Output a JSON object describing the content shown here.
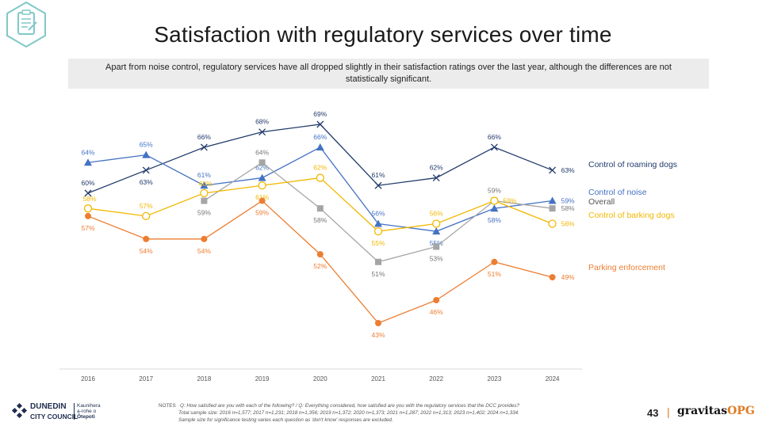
{
  "title": "Satisfaction with regulatory services over time",
  "subtitle": "Apart from noise control, regulatory services have all dropped slightly in their satisfaction ratings over the last year, although the differences are not statistically significant.",
  "chart_data": {
    "type": "line",
    "categories": [
      "2016",
      "2017",
      "2018",
      "2019",
      "2020",
      "2021",
      "2022",
      "2023",
      "2024"
    ],
    "ylim": [
      40,
      70
    ],
    "grid": false,
    "legend": "right, labels at line ends",
    "series": [
      {
        "name": "Control of roaming dogs",
        "color": "#223b6b",
        "marker": "x",
        "values": [
          60,
          63,
          66,
          68,
          69,
          61,
          62,
          66,
          63
        ],
        "labels": [
          "60%",
          "63%",
          "66%",
          "68%",
          "69%",
          "61%",
          "62%",
          "66%",
          "63%"
        ],
        "label_pos": [
          "above",
          "below",
          "above",
          "above",
          "above",
          "above",
          "above",
          "above",
          "right"
        ]
      },
      {
        "name": "Control of noise",
        "color": "#4472c4",
        "marker": "triangle",
        "values": [
          64,
          65,
          61,
          62,
          66,
          56,
          55,
          58,
          59
        ],
        "labels": [
          "64%",
          "65%",
          "61%",
          "62%",
          "66%",
          "56%",
          "55%",
          "58%",
          "59%"
        ],
        "label_pos": [
          "above",
          "above",
          "above",
          "above",
          "above",
          "above",
          "below",
          "below",
          "right"
        ]
      },
      {
        "name": "Overall",
        "color": "#a5a5a5",
        "marker": "square",
        "values": [
          null,
          null,
          59,
          64,
          58,
          51,
          53,
          59,
          58
        ],
        "labels": [
          "",
          "",
          "59%",
          "64%",
          "58%",
          "51%",
          "53%",
          "59%",
          "58%"
        ],
        "label_pos": [
          "",
          "",
          "below",
          "above",
          "below",
          "below",
          "below",
          "above",
          "right"
        ]
      },
      {
        "name": "Control of barking dogs",
        "color": "#f2b800",
        "marker": "circle-open",
        "values": [
          58,
          57,
          60,
          61,
          62,
          55,
          56,
          59,
          56
        ],
        "labels": [
          "58%",
          "57%",
          "60%",
          "61%",
          "62%",
          "55%",
          "56%",
          "59%",
          "56%"
        ],
        "label_pos": [
          "left",
          "above",
          "left",
          "below",
          "above",
          "below",
          "above",
          "right",
          "right"
        ]
      },
      {
        "name": "Parking enforcement",
        "color": "#ed7d31",
        "marker": "circle",
        "values": [
          57,
          54,
          54,
          59,
          52,
          43,
          46,
          51,
          49
        ],
        "labels": [
          "57%",
          "54%",
          "54%",
          "59%",
          "52%",
          "43%",
          "46%",
          "51%",
          "49%"
        ],
        "label_pos": [
          "below",
          "below",
          "below",
          "below",
          "below",
          "below",
          "below",
          "below",
          "right"
        ]
      }
    ]
  },
  "footer": {
    "notes_tag": "NOTES",
    "notes_line1": "Q: How satisfied are you with each of the following?  /   Q: Everything considered, how satisfied are you with the regulatory services that the DCC provides?",
    "notes_line2": "Total sample size: 2016 n=1,577; 2017 n=1,231; 2018 n=1,356; 2019 n=1,372; 2020 n=1,373; 2021 n=1,287; 2022 n=1,313; 2023 n=1,402; 2024 n=1,334.",
    "notes_line3": "Sample size for significance testing varies each question as 'don't know' responses are excluded.",
    "page_number": "43",
    "separator": "|",
    "brand_main": "gravitas",
    "brand_accent": "OPG",
    "council_name_1": "DUNEDIN",
    "council_name_2": "CITY COUNCIL",
    "council_maori_1": "Kaunihera",
    "council_maori_2": "a-rohe o",
    "council_maori_3": "Ōtepoti"
  },
  "colors": {
    "logo_badge": "#7fc9c8",
    "council_blue": "#1f2d4f",
    "brand_accent": "#e07b21"
  }
}
